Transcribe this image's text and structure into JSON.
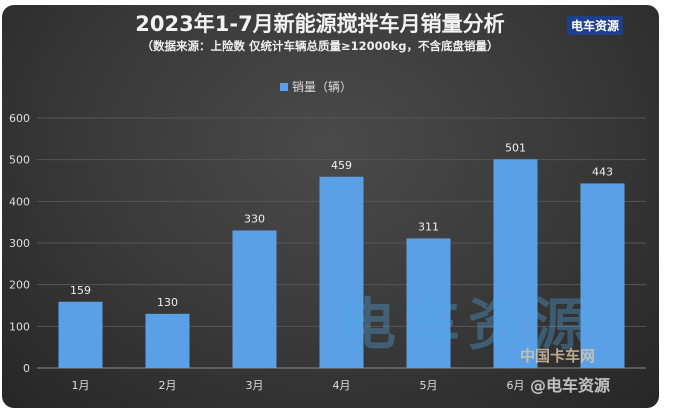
{
  "chart_data": {
    "type": "bar",
    "title": "2023年1-7月新能源搅拌车月销量分析",
    "subtitle": "（数据来源：上险数 仅统计车辆总质量≥12000kg，不含底盘销量）",
    "categories": [
      "1月",
      "2月",
      "3月",
      "4月",
      "5月",
      "6月",
      ""
    ],
    "series": [
      {
        "name": "销量（辆）",
        "values": [
          159,
          130,
          330,
          459,
          311,
          501,
          443
        ],
        "color": "#5aa0e6"
      }
    ],
    "ylim": [
      0,
      600
    ],
    "yticks": [
      0,
      100,
      200,
      300,
      400,
      500,
      600
    ],
    "grid": true,
    "legend": "top-center"
  },
  "watermarks": {
    "logo": "电车资源",
    "center": "电车资源",
    "site": "中国卡车网",
    "handle": "@电车资源"
  }
}
